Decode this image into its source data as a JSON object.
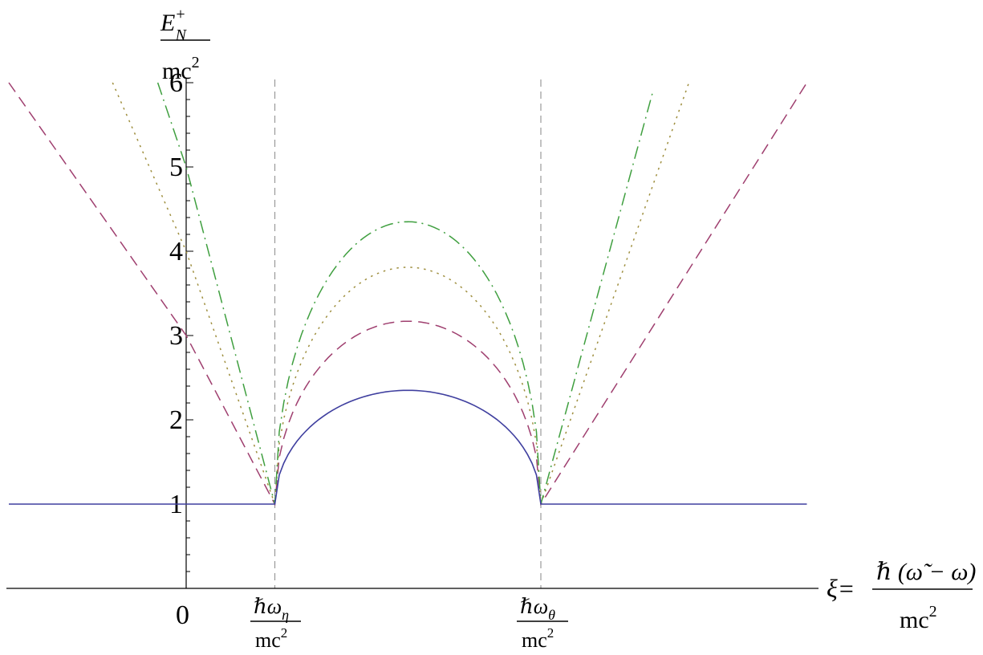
{
  "chart_data": {
    "type": "line",
    "ylabel": {
      "numerator": "E",
      "numerator_superscript": "+",
      "numerator_subscript": "N",
      "denominator": "mc",
      "denominator_superscript": "2"
    },
    "xlabel": {
      "prefix": "ξ=",
      "numerator": "ℏ (ω̃  − ω)",
      "denominator": "mc",
      "denominator_superscript": "2"
    },
    "x_ticks": [
      {
        "label": "0",
        "x": 0
      },
      {
        "label_main": "ℏω",
        "label_sub": "η",
        "label_den": "mc",
        "label_den_sup": "2",
        "x": 1
      },
      {
        "label_main": "ℏω",
        "label_sub": "θ",
        "label_den": "mc",
        "label_den_sup": "2",
        "x": 4
      }
    ],
    "y_ticks": [
      1,
      2,
      3,
      4,
      5,
      6
    ],
    "xlim": [
      -2.0,
      7.0
    ],
    "ylim": [
      0,
      6
    ],
    "grid": false,
    "reference_lines": [
      {
        "axis": "x",
        "value": 1,
        "style": "dashed",
        "color": "#999999"
      },
      {
        "axis": "x",
        "value": 4,
        "style": "dashed",
        "color": "#999999"
      }
    ],
    "series": [
      {
        "style": "solid",
        "color": "#3f3f9f",
        "flat_level": 1,
        "peak": 2.35,
        "points": [
          [
            -2.0,
            1
          ],
          [
            1,
            1
          ],
          [
            1.5,
            1.84
          ],
          [
            2.0,
            2.19
          ],
          [
            2.5,
            2.34
          ],
          [
            3.0,
            2.19
          ],
          [
            3.5,
            1.84
          ],
          [
            4,
            1
          ],
          [
            7.0,
            1
          ]
        ]
      },
      {
        "style": "dashed",
        "color": "#9f3f6f",
        "peak": 3.17,
        "points": [
          [
            -2.0,
            6.0
          ],
          [
            0,
            3.0
          ],
          [
            1,
            1
          ],
          [
            1.5,
            2.53
          ],
          [
            2.0,
            3.0
          ],
          [
            2.5,
            3.17
          ],
          [
            3.0,
            3.0
          ],
          [
            3.5,
            2.53
          ],
          [
            4,
            1
          ],
          [
            7.0,
            6.0
          ]
        ]
      },
      {
        "style": "dotted",
        "color": "#9f8f3f",
        "peak": 3.81,
        "points": [
          [
            -0.83,
            6.0
          ],
          [
            0,
            4.0
          ],
          [
            1,
            1
          ],
          [
            1.5,
            3.0
          ],
          [
            2.0,
            3.6
          ],
          [
            2.5,
            3.81
          ],
          [
            3.0,
            3.6
          ],
          [
            3.5,
            3.0
          ],
          [
            4,
            1
          ],
          [
            5.67,
            6.0
          ]
        ]
      },
      {
        "style": "dashdot",
        "color": "#3f9f3f",
        "peak": 4.35,
        "points": [
          [
            -0.32,
            6.0
          ],
          [
            0,
            5.0
          ],
          [
            1,
            1
          ],
          [
            1.5,
            3.4
          ],
          [
            2.0,
            4.1
          ],
          [
            2.5,
            4.35
          ],
          [
            3.0,
            4.1
          ],
          [
            3.5,
            3.4
          ],
          [
            4,
            1
          ],
          [
            5.27,
            5.92
          ]
        ]
      }
    ]
  }
}
